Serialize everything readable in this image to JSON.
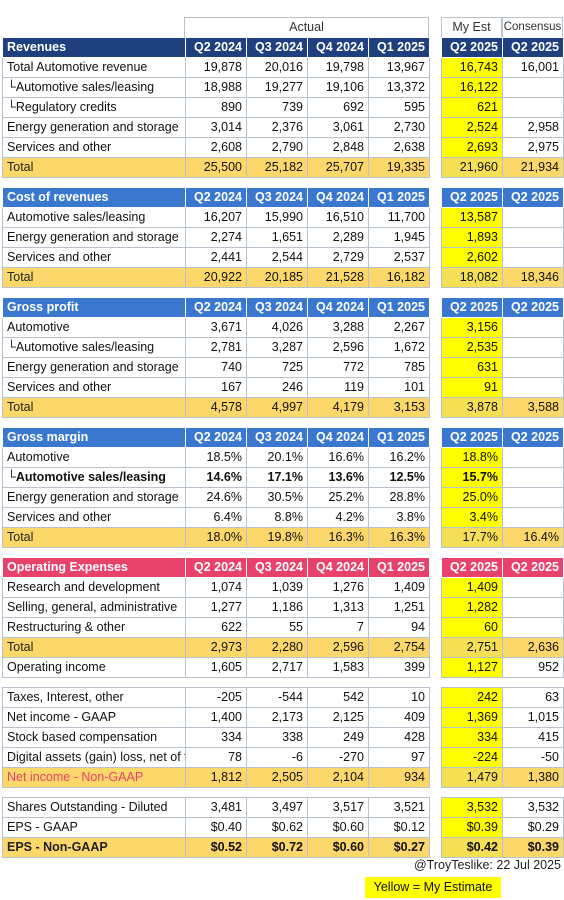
{
  "header": {
    "actual_label": "Actual",
    "my_est_label": "My Est",
    "consensus_label": "Consensus"
  },
  "periods": [
    "Q2 2024",
    "Q3 2024",
    "Q4 2024",
    "Q1 2025"
  ],
  "est_periods": [
    "Q2 2025",
    "Q2 2025"
  ],
  "sections": [
    {
      "id": "revenues",
      "title": "Revenues",
      "style": "navy",
      "top": 37,
      "rows": [
        {
          "label": "Total Automotive revenue",
          "values": [
            "19,878",
            "20,016",
            "19,798",
            "13,967"
          ],
          "est": "16,743",
          "cons": "16,001"
        },
        {
          "label": "└Automotive sales/leasing",
          "values": [
            "18,988",
            "19,277",
            "19,106",
            "13,372"
          ],
          "est": "16,122",
          "cons": ""
        },
        {
          "label": "└Regulatory credits",
          "values": [
            "890",
            "739",
            "692",
            "595"
          ],
          "est": "621",
          "cons": ""
        },
        {
          "label": "Energy generation and storage",
          "values": [
            "3,014",
            "2,376",
            "3,061",
            "2,730"
          ],
          "est": "2,524",
          "cons": "2,958"
        },
        {
          "label": "Services and other",
          "values": [
            "2,608",
            "2,790",
            "2,848",
            "2,638"
          ],
          "est": "2,693",
          "cons": "2,975"
        },
        {
          "label": "Total",
          "values": [
            "25,500",
            "25,182",
            "25,707",
            "19,335"
          ],
          "est": "21,960",
          "cons": "21,934",
          "type": "total"
        }
      ]
    },
    {
      "id": "cost",
      "title": "Cost of revenues",
      "style": "blue",
      "top": 187,
      "rows": [
        {
          "label": "Automotive sales/leasing",
          "values": [
            "16,207",
            "15,990",
            "16,510",
            "11,700"
          ],
          "est": "13,587",
          "cons": ""
        },
        {
          "label": "Energy generation and storage",
          "values": [
            "2,274",
            "1,651",
            "2,289",
            "1,945"
          ],
          "est": "1,893",
          "cons": ""
        },
        {
          "label": "Services and other",
          "values": [
            "2,441",
            "2,544",
            "2,729",
            "2,537"
          ],
          "est": "2,602",
          "cons": ""
        },
        {
          "label": "Total",
          "values": [
            "20,922",
            "20,185",
            "21,528",
            "16,182"
          ],
          "est": "18,082",
          "cons": "18,346",
          "type": "total"
        }
      ]
    },
    {
      "id": "gross-profit",
      "title": "Gross profit",
      "style": "blue",
      "top": 297,
      "rows": [
        {
          "label": "Automotive",
          "values": [
            "3,671",
            "4,026",
            "3,288",
            "2,267"
          ],
          "est": "3,156",
          "cons": ""
        },
        {
          "label": "└Automotive sales/leasing",
          "values": [
            "2,781",
            "3,287",
            "2,596",
            "1,672"
          ],
          "est": "2,535",
          "cons": ""
        },
        {
          "label": "Energy generation and storage",
          "values": [
            "740",
            "725",
            "772",
            "785"
          ],
          "est": "631",
          "cons": ""
        },
        {
          "label": "Services and other",
          "values": [
            "167",
            "246",
            "119",
            "101"
          ],
          "est": "91",
          "cons": ""
        },
        {
          "label": "Total",
          "values": [
            "4,578",
            "4,997",
            "4,179",
            "3,153"
          ],
          "est": "3,878",
          "cons": "3,588",
          "type": "total"
        }
      ]
    },
    {
      "id": "gross-margin",
      "title": "Gross margin",
      "style": "blue",
      "top": 427,
      "rows": [
        {
          "label": "Automotive",
          "values": [
            "18.5%",
            "20.1%",
            "16.6%",
            "16.2%"
          ],
          "est": "18.8%",
          "cons": ""
        },
        {
          "label": "└Automotive sales/leasing",
          "values": [
            "14.6%",
            "17.1%",
            "13.6%",
            "12.5%"
          ],
          "est": "15.7%",
          "cons": "",
          "type": "bold"
        },
        {
          "label": "Energy generation and storage",
          "values": [
            "24.6%",
            "30.5%",
            "25.2%",
            "28.8%"
          ],
          "est": "25.0%",
          "cons": ""
        },
        {
          "label": "Services and other",
          "values": [
            "6.4%",
            "8.8%",
            "4.2%",
            "3.8%"
          ],
          "est": "3.4%",
          "cons": ""
        },
        {
          "label": "Total",
          "values": [
            "18.0%",
            "19.8%",
            "16.3%",
            "16.3%"
          ],
          "est": "17.7%",
          "cons": "16.4%",
          "type": "total"
        }
      ]
    },
    {
      "id": "opex",
      "title": "Operating Expenses",
      "style": "pink",
      "top": 557,
      "rows": [
        {
          "label": "Research and development",
          "values": [
            "1,074",
            "1,039",
            "1,276",
            "1,409"
          ],
          "est": "1,409",
          "cons": ""
        },
        {
          "label": "Selling, general, administrative",
          "values": [
            "1,277",
            "1,186",
            "1,313",
            "1,251"
          ],
          "est": "1,282",
          "cons": ""
        },
        {
          "label": "Restructuring & other",
          "values": [
            "622",
            "55",
            "7",
            "94"
          ],
          "est": "60",
          "cons": ""
        },
        {
          "label": "Total",
          "values": [
            "2,973",
            "2,280",
            "2,596",
            "2,754"
          ],
          "est": "2,751",
          "cons": "2,636",
          "type": "total"
        },
        {
          "label": "Operating income",
          "values": [
            "1,605",
            "2,717",
            "1,583",
            "399"
          ],
          "est": "1,127",
          "cons": "952"
        }
      ]
    },
    {
      "id": "net-income",
      "title": "",
      "style": "none",
      "top": 687,
      "rows": [
        {
          "label": "Taxes, Interest, other",
          "values": [
            "-205",
            "-544",
            "542",
            "10"
          ],
          "est": "242",
          "cons": "63"
        },
        {
          "label": "Net income - GAAP",
          "values": [
            "1,400",
            "2,173",
            "2,125",
            "409"
          ],
          "est": "1,369",
          "cons": "1,015"
        },
        {
          "label": "Stock based compensation",
          "values": [
            "334",
            "338",
            "249",
            "428"
          ],
          "est": "334",
          "cons": "415"
        },
        {
          "label": "Digital assets (gain) loss, net of tax",
          "values": [
            "78",
            "-6",
            "-270",
            "97"
          ],
          "est": "-224",
          "cons": "-50"
        },
        {
          "label": "Net income - Non-GAAP",
          "values": [
            "1,812",
            "2,505",
            "2,104",
            "934"
          ],
          "est": "1,479",
          "cons": "1,380",
          "type": "total-pink"
        }
      ]
    },
    {
      "id": "eps",
      "title": "",
      "style": "none",
      "top": 797,
      "rows": [
        {
          "label": "Shares Outstanding - Diluted",
          "values": [
            "3,481",
            "3,497",
            "3,517",
            "3,521"
          ],
          "est": "3,532",
          "cons": "3,532"
        },
        {
          "label": "EPS - GAAP",
          "values": [
            "$0.40",
            "$0.62",
            "$0.60",
            "$0.12"
          ],
          "est": "$0.39",
          "cons": "$0.29"
        },
        {
          "label": "EPS - Non-GAAP",
          "values": [
            "$0.52",
            "$0.72",
            "$0.60",
            "$0.27"
          ],
          "est": "$0.42",
          "cons": "$0.39",
          "type": "total-bold"
        }
      ]
    }
  ],
  "footer": {
    "credit": "@TroyTeslike: 22 Jul 2025",
    "legend": "Yellow = My Estimate"
  },
  "colors": {
    "navy": "#1f3f7f",
    "blue": "#3a78d0",
    "pink": "#e8416b",
    "total": "#fcd86a",
    "estimate": "#ffff00"
  }
}
